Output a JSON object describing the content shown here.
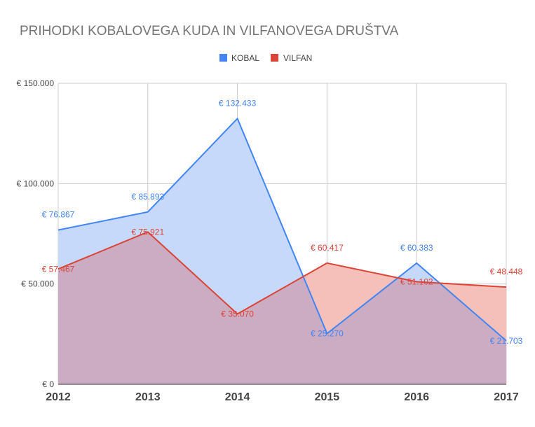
{
  "chart_data": {
    "type": "area",
    "title": "PRIHODKI KOBALOVEGA KUDA IN VILFANOVEGA DRUŠTVA",
    "xlabel": "",
    "ylabel": "",
    "categories": [
      "2012",
      "2013",
      "2014",
      "2015",
      "2016",
      "2017"
    ],
    "ylim": [
      0,
      150000
    ],
    "yticks": [
      {
        "value": 0,
        "label": "€ 0"
      },
      {
        "value": 50000,
        "label": "€ 50.000"
      },
      {
        "value": 100000,
        "label": "€ 100.000"
      },
      {
        "value": 150000,
        "label": "€ 150.000"
      }
    ],
    "grid": true,
    "legend_position": "top-center",
    "series": [
      {
        "name": "KOBAL",
        "color": "#4285f4",
        "fill": "#c6d9fb",
        "values": [
          76867,
          85893,
          132433,
          25270,
          60383,
          21703
        ],
        "labels": [
          "€ 76.867",
          "€ 85.893",
          "€ 132.433",
          "€ 25.270",
          "€ 60.383",
          "€ 21.703"
        ]
      },
      {
        "name": "VILFAN",
        "color": "#db4437",
        "fill": "#f5c0ba",
        "values": [
          57467,
          75921,
          35070,
          60417,
          51102,
          48448
        ],
        "labels": [
          "€ 57.467",
          "€ 75.921",
          "€ 35.070",
          "€ 60.417",
          "€ 51.102",
          "€ 48.448"
        ]
      }
    ],
    "overlap_fill": "#cbacc3"
  }
}
